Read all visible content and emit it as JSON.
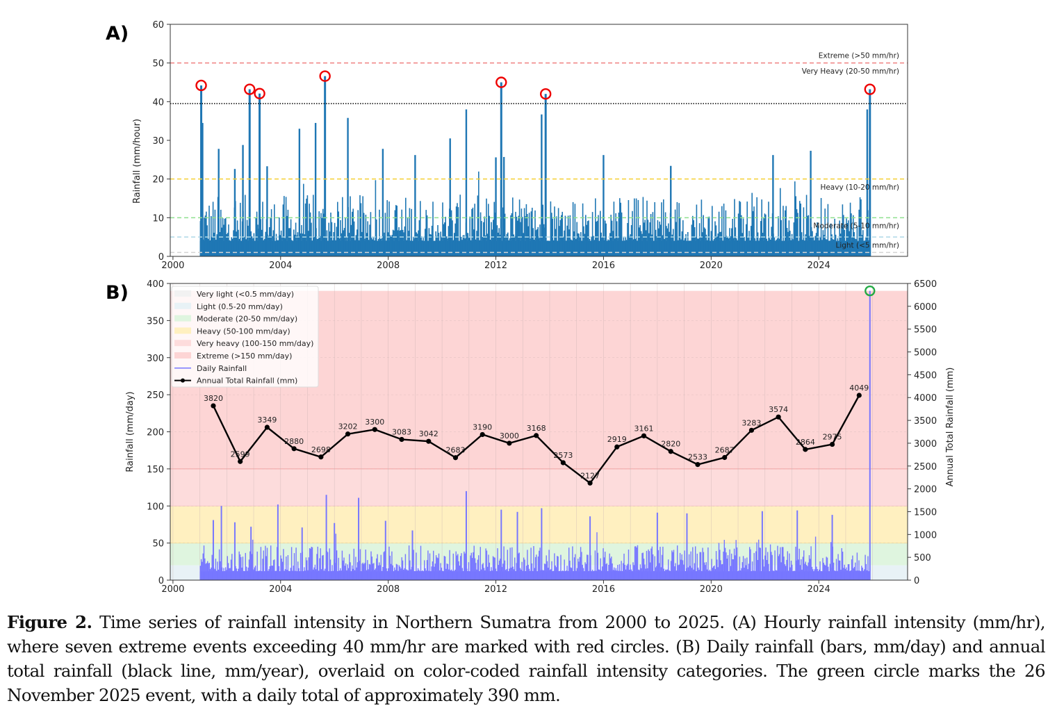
{
  "caption": {
    "label": "Figure 2.",
    "text": " Time series of rainfall intensity in Northern Sumatra from 2000 to 2025. (A) Hourly rainfall intensity (mm/hr), where seven extreme events exceeding 40 mm/hr are marked with red circles. (B) Daily rainfall (bars, mm/day) and annual total rainfall (black line, mm/year), overlaid on color-coded rainfall intensity categories. The green circle marks the 26 November 2025 event, with a daily total of approximately 390 mm."
  },
  "chart_data": [
    {
      "panel": "A)",
      "type": "bar",
      "title": "",
      "xlabel": "",
      "ylabel": "Rainfall (mm/hour)",
      "xlim": [
        1999.9,
        2027.3
      ],
      "ylim": [
        0,
        60
      ],
      "xticks": [
        2000,
        2004,
        2008,
        2012,
        2016,
        2020,
        2024
      ],
      "yticks": [
        0,
        10,
        20,
        30,
        40,
        50,
        60
      ],
      "series_color": "#1f77b4",
      "data_range": [
        2001.0,
        2025.9
      ],
      "threshold_lines": [
        {
          "value": 50,
          "label": "Extreme (>50 mm/hr)",
          "color": "#f08080",
          "style": "dashed"
        },
        {
          "value": 39.5,
          "label": "",
          "color": "#000000",
          "style": "dotted"
        },
        {
          "value": 20,
          "label": "Heavy (10-20 mm/hr)",
          "color": "#f5d033",
          "style": "dashed"
        },
        {
          "value": 10,
          "label": "Moderate (5-10 mm/hr)",
          "color": "#8fe08f",
          "style": "dashed"
        },
        {
          "value": 5,
          "label": "Light (<5 mm/hr)",
          "color": "#add8e6",
          "style": "dashed"
        },
        {
          "value": 1,
          "label": "",
          "color": "#d3d3d3",
          "style": "dashed"
        }
      ],
      "band_labels": [
        {
          "text": "Extreme (>50 mm/hr)",
          "y": 52
        },
        {
          "text": "Very Heavy (20-50 mm/hr)",
          "y": 48
        },
        {
          "text": "Heavy (10-20 mm/hr)",
          "y": 18
        },
        {
          "text": "Moderate (5-10 mm/hr)",
          "y": 8
        },
        {
          "text": "Light (<5 mm/hr)",
          "y": 3
        }
      ],
      "notable_peaks": [
        {
          "x": 2001.1,
          "y": 34.5
        },
        {
          "x": 2001.7,
          "y": 27.8
        },
        {
          "x": 2002.3,
          "y": 22.6
        },
        {
          "x": 2002.6,
          "y": 28.8
        },
        {
          "x": 2003.5,
          "y": 23.3
        },
        {
          "x": 2004.7,
          "y": 33.0
        },
        {
          "x": 2005.3,
          "y": 34.5
        },
        {
          "x": 2006.5,
          "y": 35.8
        },
        {
          "x": 2007.8,
          "y": 27.8
        },
        {
          "x": 2009.0,
          "y": 26.2
        },
        {
          "x": 2010.3,
          "y": 30.5
        },
        {
          "x": 2010.9,
          "y": 38.0
        },
        {
          "x": 2012.0,
          "y": 25.6
        },
        {
          "x": 2012.3,
          "y": 25.7
        },
        {
          "x": 2013.7,
          "y": 36.7
        },
        {
          "x": 2016.0,
          "y": 26.2
        },
        {
          "x": 2018.5,
          "y": 23.4
        },
        {
          "x": 2022.3,
          "y": 26.2
        },
        {
          "x": 2023.7,
          "y": 27.3
        },
        {
          "x": 2025.8,
          "y": 38.0
        }
      ],
      "extreme_events": [
        {
          "x": 2001.05,
          "y": 44.2
        },
        {
          "x": 2002.85,
          "y": 43.2
        },
        {
          "x": 2003.22,
          "y": 42.1
        },
        {
          "x": 2005.65,
          "y": 46.6
        },
        {
          "x": 2012.2,
          "y": 45.0
        },
        {
          "x": 2013.85,
          "y": 42.0
        },
        {
          "x": 2025.9,
          "y": 43.2
        }
      ],
      "extreme_marker_color": "#ee0000"
    },
    {
      "panel": "B)",
      "type": "bar+line",
      "title": "",
      "xlabel": "",
      "ylabel": "Rainfall (mm/day)",
      "ylabel_right": "Annual Total Rainfall (mm)",
      "xlim": [
        1999.9,
        2027.3
      ],
      "ylim": [
        0,
        400
      ],
      "ylim_right": [
        0,
        6500
      ],
      "xticks": [
        2000,
        2004,
        2008,
        2012,
        2016,
        2020,
        2024
      ],
      "yticks": [
        0,
        50,
        100,
        150,
        200,
        250,
        300,
        350,
        400
      ],
      "yticks_right": [
        0,
        500,
        1000,
        1500,
        2000,
        2500,
        3000,
        3500,
        4000,
        4500,
        5000,
        5500,
        6000,
        6500
      ],
      "grid": true,
      "legend_position": "top-left",
      "bands": [
        {
          "label": "Very light (<0.5 mm/day)",
          "from": 0,
          "to": 0.5,
          "color": "#f2f2f2"
        },
        {
          "label": "Light (0.5-20 mm/day)",
          "from": 0.5,
          "to": 20,
          "color": "#e8f2f6"
        },
        {
          "label": "Moderate (20-50 mm/day)",
          "from": 20,
          "to": 50,
          "color": "#dff5df"
        },
        {
          "label": "Heavy (50-100 mm/day)",
          "from": 50,
          "to": 100,
          "color": "#fff0c0"
        },
        {
          "label": "Very heavy (100-150 mm/day)",
          "from": 100,
          "to": 150,
          "color": "#fddcdc"
        },
        {
          "label": "Extreme (>150 mm/day)",
          "from": 150,
          "to": 390,
          "color": "#fdd5d5"
        }
      ],
      "legend_lines": [
        {
          "label": "Daily Rainfall",
          "color": "#7777ff"
        },
        {
          "label": "Annual Total Rainfall (mm)",
          "color": "#000000"
        }
      ],
      "daily_color": "#7777ff",
      "daily_peaks": [
        {
          "x": 2001.5,
          "y": 81
        },
        {
          "x": 2001.8,
          "y": 100
        },
        {
          "x": 2002.3,
          "y": 78
        },
        {
          "x": 2002.9,
          "y": 72
        },
        {
          "x": 2003.9,
          "y": 102
        },
        {
          "x": 2004.8,
          "y": 71
        },
        {
          "x": 2005.7,
          "y": 115
        },
        {
          "x": 2006.0,
          "y": 77
        },
        {
          "x": 2006.9,
          "y": 111
        },
        {
          "x": 2007.9,
          "y": 80
        },
        {
          "x": 2008.9,
          "y": 67
        },
        {
          "x": 2010.9,
          "y": 120
        },
        {
          "x": 2012.2,
          "y": 95
        },
        {
          "x": 2012.8,
          "y": 92
        },
        {
          "x": 2013.7,
          "y": 97
        },
        {
          "x": 2015.5,
          "y": 86
        },
        {
          "x": 2018.0,
          "y": 91
        },
        {
          "x": 2019.1,
          "y": 90
        },
        {
          "x": 2021.9,
          "y": 93
        },
        {
          "x": 2023.2,
          "y": 94
        },
        {
          "x": 2024.5,
          "y": 88
        }
      ],
      "event_marker": {
        "x": 2025.9,
        "y": 390,
        "label": "26 November 2025",
        "color": "#22aa44"
      },
      "annual_totals": {
        "x": [
          2001.5,
          2002.5,
          2003.5,
          2004.5,
          2005.5,
          2006.5,
          2007.5,
          2008.5,
          2009.5,
          2010.5,
          2011.5,
          2012.5,
          2013.5,
          2014.5,
          2015.5,
          2016.5,
          2017.5,
          2018.5,
          2019.5,
          2020.5,
          2021.5,
          2022.5,
          2023.5,
          2024.5,
          2025.5
        ],
        "values": [
          3820,
          2599,
          3349,
          2880,
          2698,
          3202,
          3300,
          3083,
          3042,
          2683,
          3190,
          3000,
          3168,
          2573,
          2127,
          2919,
          3161,
          2820,
          2533,
          2687,
          3283,
          3574,
          2864,
          2975,
          4049
        ]
      }
    }
  ]
}
